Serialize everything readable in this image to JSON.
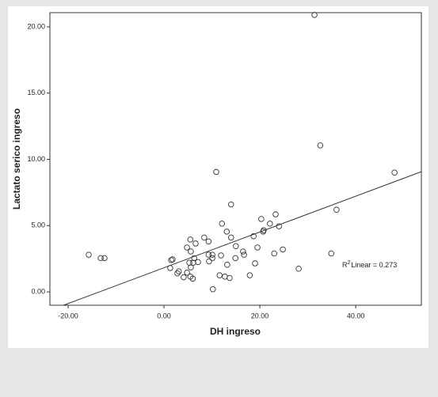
{
  "chart_data": {
    "type": "scatter",
    "x_label": "DH ingreso",
    "y_label": "Lactato serico ingreso",
    "annotation": {
      "prefix": "R",
      "superscript": "2",
      "text": "Linear = 0.273"
    },
    "color": "#333333",
    "line_color": "#333333",
    "fit": {
      "intercept": 1.82,
      "slope": 0.135
    },
    "xlim": [
      -23.8,
      53.7
    ],
    "ylim": [
      -1.01,
      21.07
    ],
    "xticks": [
      {
        "value": -20,
        "label": "-20.00"
      },
      {
        "value": 0,
        "label": "0.00"
      },
      {
        "value": 20,
        "label": "20.00"
      },
      {
        "value": 40,
        "label": "40.00"
      }
    ],
    "yticks": [
      {
        "value": 0,
        "label": "0.00"
      },
      {
        "value": 5,
        "label": "5.00"
      },
      {
        "value": 10,
        "label": "10.00"
      },
      {
        "value": 15,
        "label": "15.00"
      },
      {
        "value": 20,
        "label": "20.00"
      }
    ],
    "x": [
      -15.7,
      -13.2,
      -12.4,
      1.5,
      1.8,
      1.3,
      2.8,
      3.1,
      4.1,
      4.8,
      5.3,
      5.5,
      5.6,
      5.5,
      5.6,
      4.8,
      6.0,
      6.3,
      6.1,
      6.6,
      7.1,
      8.4,
      9.3,
      9.3,
      9.4,
      10.1,
      10.1,
      10.2,
      10.9,
      11.6,
      11.9,
      12.1,
      12.7,
      13.1,
      13.2,
      13.7,
      14.0,
      14.0,
      15.0,
      14.9,
      16.5,
      16.7,
      17.9,
      18.7,
      19.0,
      19.5,
      20.3,
      20.7,
      20.8,
      22.1,
      23.0,
      23.3,
      24.0,
      24.8,
      28.1,
      31.4,
      32.6,
      34.9,
      36.0,
      48.1
    ],
    "values": [
      2.8,
      2.55,
      2.55,
      2.4,
      2.45,
      1.8,
      1.4,
      1.55,
      1.1,
      3.35,
      2.2,
      1.15,
      1.85,
      3.95,
      3.05,
      1.45,
      1.0,
      2.55,
      2.2,
      3.65,
      2.25,
      4.1,
      3.8,
      2.8,
      2.3,
      2.8,
      2.55,
      0.2,
      9.05,
      1.25,
      2.75,
      5.15,
      1.15,
      4.55,
      2.05,
      1.05,
      4.1,
      6.6,
      3.45,
      2.55,
      3.05,
      2.8,
      1.25,
      4.2,
      2.15,
      3.35,
      5.5,
      4.55,
      4.65,
      5.15,
      2.9,
      5.85,
      4.95,
      3.2,
      1.75,
      20.9,
      11.05,
      2.9,
      6.2,
      9.0
    ]
  }
}
